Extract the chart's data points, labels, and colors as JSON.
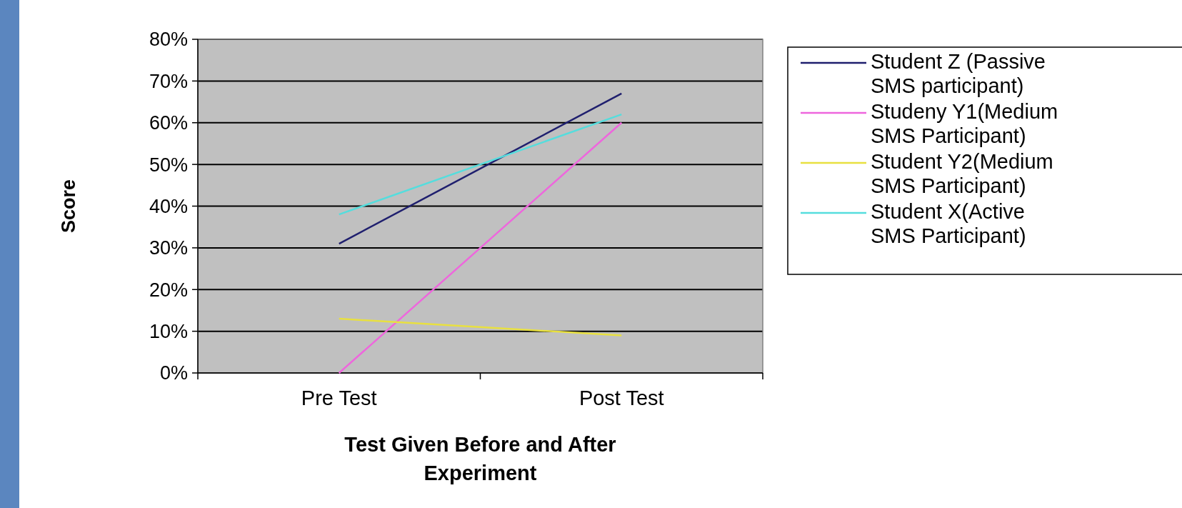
{
  "chart_data": {
    "type": "line",
    "xlabel": "Test Given Before and After Experiment",
    "ylabel": "Score",
    "categories": [
      "Pre Test",
      "Post Test"
    ],
    "series": [
      {
        "name": "Student Z (Passive SMS participant)",
        "color": "#1f1f6e",
        "values": [
          31,
          67
        ]
      },
      {
        "name": "Studeny Y1(Medium SMS Participant)",
        "color": "#ee66dd",
        "values": [
          0,
          60
        ]
      },
      {
        "name": "Student Y2(Medium SMS Participant)",
        "color": "#e8e040",
        "values": [
          13,
          9
        ]
      },
      {
        "name": "Student X(Active SMS Participant)",
        "color": "#55dddd",
        "values": [
          38,
          62
        ]
      }
    ],
    "ylim": [
      0,
      80
    ],
    "yticks": [
      {
        "value": 0,
        "label": "0%"
      },
      {
        "value": 10,
        "label": "10%"
      },
      {
        "value": 20,
        "label": "20%"
      },
      {
        "value": 30,
        "label": "30%"
      },
      {
        "value": 40,
        "label": "40%"
      },
      {
        "value": 50,
        "label": "50%"
      },
      {
        "value": 60,
        "label": "60%"
      },
      {
        "value": 70,
        "label": "70%"
      },
      {
        "value": 80,
        "label": "80%"
      }
    ],
    "grid": "y",
    "legend": "right",
    "marker": "none",
    "line_style": "solid"
  }
}
